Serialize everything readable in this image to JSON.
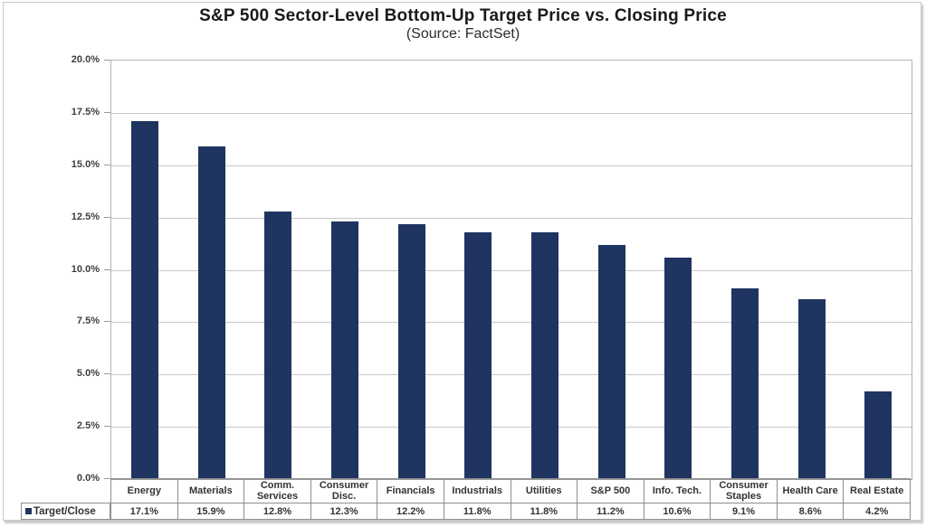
{
  "chart_data": {
    "type": "bar",
    "title": "S&P 500 Sector-Level Bottom-Up Target Price vs. Closing Price",
    "subtitle": "(Source: FactSet)",
    "categories": [
      "Energy",
      "Materials",
      "Comm. Services",
      "Consumer Disc.",
      "Financials",
      "Industrials",
      "Utilities",
      "S&P 500",
      "Info. Tech.",
      "Consumer Staples",
      "Health Care",
      "Real Estate"
    ],
    "series": [
      {
        "name": "Target/Close",
        "values": [
          17.1,
          15.9,
          12.8,
          12.3,
          12.2,
          11.8,
          11.8,
          11.2,
          10.6,
          9.1,
          8.6,
          4.2
        ],
        "value_labels": [
          "17.1%",
          "15.9%",
          "12.8%",
          "12.3%",
          "12.2%",
          "11.8%",
          "11.8%",
          "11.2%",
          "10.6%",
          "9.1%",
          "8.6%",
          "4.2%"
        ]
      }
    ],
    "xlabel": "",
    "ylabel": "",
    "ylim": [
      0,
      20
    ],
    "ytick_step": 2.5,
    "ytick_labels": [
      "20.0%",
      "17.5%",
      "15.0%",
      "12.5%",
      "10.0%",
      "7.5%",
      "5.0%",
      "2.5%",
      "0.0%"
    ],
    "grid": "horizontal",
    "legend_position": "bottom-left-table",
    "data_table_shown": true,
    "colors": {
      "bar": "#1f3460",
      "gridline": "#c8c8c8",
      "plot_border": "#b3b3b3",
      "table_border": "#8f8f8f",
      "text": "#333333"
    }
  }
}
